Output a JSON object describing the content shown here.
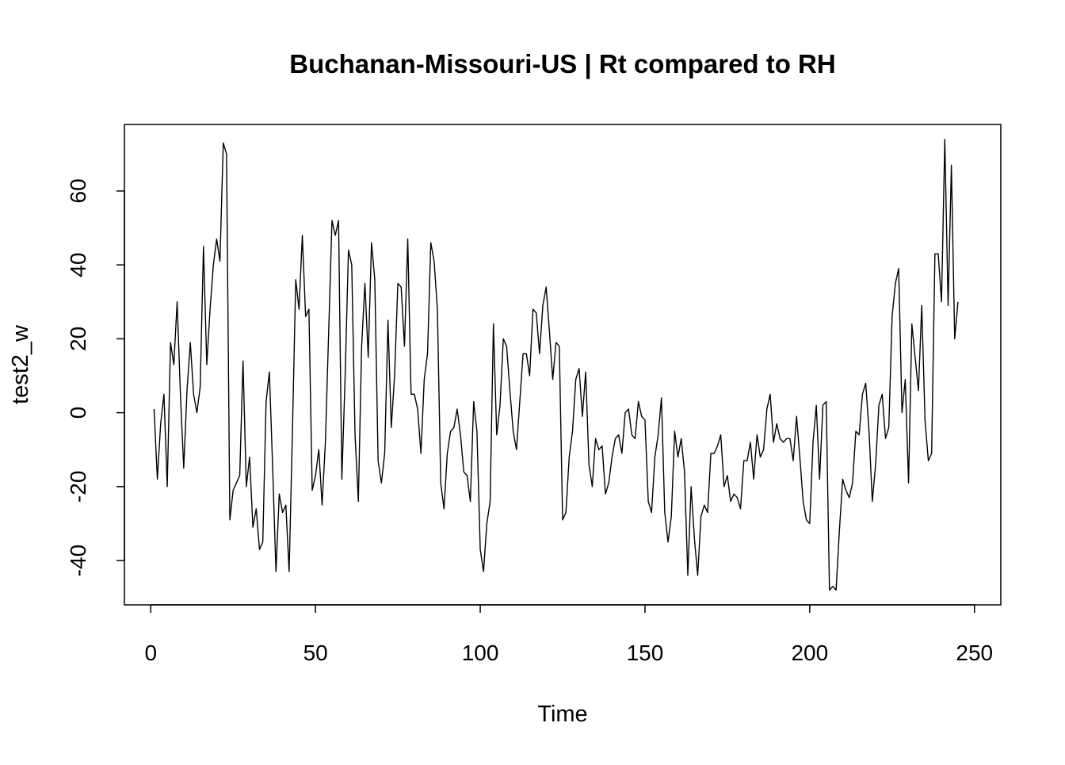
{
  "chart_data": {
    "type": "line",
    "title": "Buchanan-Missouri-US | Rt compared to RH",
    "xlabel": "Time",
    "ylabel": "test2_w",
    "xlim": [
      -8,
      258
    ],
    "ylim": [
      -52,
      78
    ],
    "x_ticks": [
      0,
      50,
      100,
      150,
      200,
      250
    ],
    "y_ticks": [
      -40,
      -20,
      0,
      20,
      40,
      60
    ],
    "x_tick_labels": [
      "0",
      "50",
      "100",
      "150",
      "200",
      "250"
    ],
    "y_tick_labels": [
      "-40",
      "-20",
      "0",
      "20",
      "40",
      "60"
    ],
    "grid": false,
    "legend": "none",
    "line_color": "#000000",
    "series": [
      {
        "x_start": 1,
        "x_step": 1,
        "values": [
          1,
          -18,
          -3,
          5,
          -20,
          19,
          13,
          30,
          5,
          -15,
          6,
          19,
          5,
          0,
          7,
          45,
          13,
          28,
          40,
          47,
          41,
          73,
          70,
          -29,
          -21,
          -19,
          -17,
          14,
          -20,
          -12,
          -31,
          -26,
          -37,
          -35,
          3,
          11,
          -15,
          -43,
          -22,
          -27,
          -25,
          -43,
          -5,
          36,
          28,
          48,
          26,
          28,
          -21,
          -17,
          -10,
          -25,
          -8,
          22,
          52,
          48,
          52,
          -18,
          10,
          44,
          40,
          -6,
          -24,
          18,
          35,
          15,
          46,
          36,
          -13,
          -19,
          -11,
          25,
          -4,
          10,
          35,
          34,
          18,
          47,
          5,
          5,
          1,
          -11,
          9,
          16,
          46,
          41,
          28,
          -19,
          -26,
          -11,
          -5,
          -4,
          1,
          -6,
          -16,
          -17,
          -24,
          3,
          -5,
          -37,
          -43,
          -30,
          -24,
          24,
          -6,
          2,
          20,
          18,
          6,
          -5,
          -10,
          3,
          16,
          16,
          10,
          28,
          27,
          16,
          29,
          34,
          22,
          9,
          19,
          18,
          -29,
          -27,
          -12,
          -5,
          9,
          12,
          -1,
          11,
          -14,
          -20,
          -7,
          -10,
          -9,
          -22,
          -19,
          -12,
          -7,
          -6,
          -11,
          0,
          1,
          -6,
          -7,
          3,
          -1,
          -2,
          -24,
          -27,
          -12,
          -6,
          4,
          -27,
          -35,
          -28,
          -5,
          -12,
          -7,
          -16,
          -44,
          -20,
          -34,
          -44,
          -28,
          -25,
          -27,
          -11,
          -11,
          -9,
          -6,
          -20,
          -17,
          -24,
          -22,
          -23,
          -26,
          -13,
          -13,
          -8,
          -18,
          -6,
          -12,
          -10,
          1,
          5,
          -8,
          -3,
          -7,
          -8,
          -7,
          -7,
          -13,
          -1,
          -12,
          -24,
          -29,
          -30,
          -8,
          2,
          -18,
          2,
          3,
          -48,
          -47,
          -48,
          -32,
          -18,
          -21,
          -23,
          -19,
          -5,
          -6,
          5,
          8,
          -5,
          -24,
          -14,
          2,
          5,
          -7,
          -4,
          26,
          35,
          39,
          0,
          9,
          -19,
          24,
          15,
          6,
          29,
          -2,
          -13,
          -11,
          43,
          43,
          30,
          74,
          29,
          67,
          20,
          30
        ]
      }
    ]
  }
}
